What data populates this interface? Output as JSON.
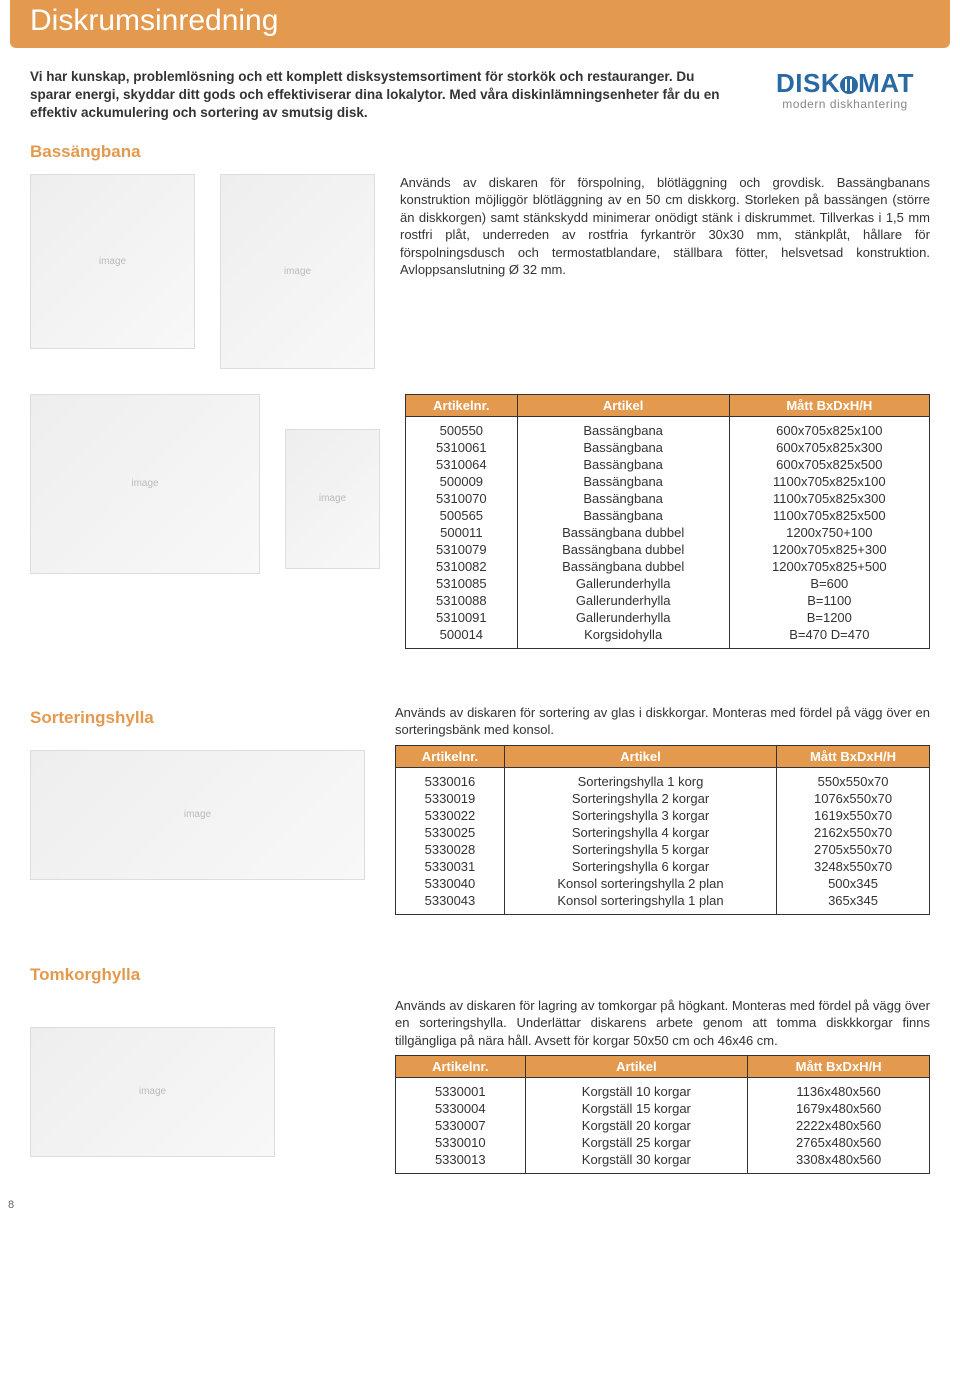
{
  "header": {
    "title": "Diskrumsinredning"
  },
  "logo": {
    "brand": "DISK",
    "brand2": "MAT",
    "subtitle": "modern diskhantering"
  },
  "intro": "Vi har kunskap, problemlösning och ett komplett disksystemsortiment för storkök och restauranger. Du sparar energi, skyddar ditt gods och effektiviserar dina lokalytor. Med våra diskinlämningsenheter får du en effektiv ackumulering och sortering av smutsig disk.",
  "bassangbana": {
    "title": "Bassängbana",
    "description": "Används av diskaren för förspolning, blötläggning och grovdisk. Bassängbanans konstruktion möjliggör blötläggning av en 50 cm diskkorg. Storleken på bassängen (större än diskkorgen) samt stänkskydd minimerar onödigt stänk i diskrummet. Tillverkas i 1,5 mm rostfri plåt, underreden av rostfria fyrkantrör 30x30 mm, stänkplåt, hållare för förspolningsdusch och termostatblandare, ställbara fötter, helsvetsad konstruktion. Avloppsanslutning Ø 32 mm.",
    "columns": [
      "Artikelnr.",
      "Artikel",
      "Mått BxDxH/H"
    ],
    "rows": [
      [
        "500550",
        "Bassängbana",
        "600x705x825x100"
      ],
      [
        "5310061",
        "Bassängbana",
        "600x705x825x300"
      ],
      [
        "5310064",
        "Bassängbana",
        "600x705x825x500"
      ],
      [
        "500009",
        "Bassängbana",
        "1100x705x825x100"
      ],
      [
        "5310070",
        "Bassängbana",
        "1100x705x825x300"
      ],
      [
        "500565",
        "Bassängbana",
        "1100x705x825x500"
      ],
      [
        "500011",
        "Bassängbana dubbel",
        "1200x750+100"
      ],
      [
        "5310079",
        "Bassängbana dubbel",
        "1200x705x825+300"
      ],
      [
        "5310082",
        "Bassängbana dubbel",
        "1200x705x825+500"
      ],
      [
        "5310085",
        "Gallerunderhylla",
        "B=600"
      ],
      [
        "5310088",
        "Gallerunderhylla",
        "B=1100"
      ],
      [
        "5310091",
        "Gallerunderhylla",
        "B=1200"
      ],
      [
        "500014",
        "Korgsidohylla",
        "B=470  D=470"
      ]
    ]
  },
  "sorteringshylla": {
    "title": "Sorteringshylla",
    "description": "Används av diskaren för sortering av glas i diskkorgar. Monteras med fördel på vägg över en sorteringsbänk med konsol.",
    "columns": [
      "Artikelnr.",
      "Artikel",
      "Mått BxDxH/H"
    ],
    "rows": [
      [
        "5330016",
        "Sorteringshylla 1 korg",
        "550x550x70"
      ],
      [
        "5330019",
        "Sorteringshylla 2 korgar",
        "1076x550x70"
      ],
      [
        "5330022",
        "Sorteringshylla 3 korgar",
        "1619x550x70"
      ],
      [
        "5330025",
        "Sorteringshylla 4 korgar",
        "2162x550x70"
      ],
      [
        "5330028",
        "Sorteringshylla 5 korgar",
        "2705x550x70"
      ],
      [
        "5330031",
        "Sorteringshylla 6 korgar",
        "3248x550x70"
      ],
      [
        "5330040",
        "Konsol sorteringshylla 2 plan",
        "500x345"
      ],
      [
        "5330043",
        "Konsol sorteringshylla 1 plan",
        "365x345"
      ]
    ]
  },
  "tomkorghylla": {
    "title": "Tomkorghylla",
    "description": "Används av diskaren för lagring av tomkorgar på högkant. Monteras med fördel på vägg över en sorteringshylla. Underlättar diskarens arbete genom att tomma diskkkorgar finns tillgängliga på nära håll. Avsett för korgar 50x50 cm och 46x46 cm.",
    "columns": [
      "Artikelnr.",
      "Artikel",
      "Mått BxDxH/H"
    ],
    "rows": [
      [
        "5330001",
        "Korgställ 10 korgar",
        "1136x480x560"
      ],
      [
        "5330004",
        "Korgställ 15 korgar",
        "1679x480x560"
      ],
      [
        "5330007",
        "Korgställ 20 korgar",
        "2222x480x560"
      ],
      [
        "5330010",
        "Korgställ 25 korgar",
        "2765x480x560"
      ],
      [
        "5330013",
        "Korgställ 30 korgar",
        "3308x480x560"
      ]
    ]
  },
  "page_number": "8"
}
